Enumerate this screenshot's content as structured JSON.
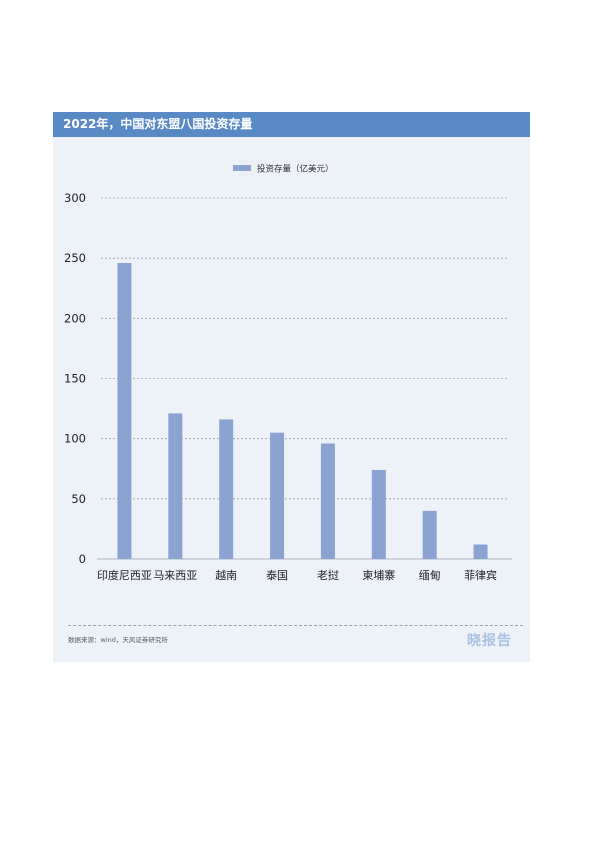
{
  "header": {
    "title": "2022年，中国对东盟八国投资存量"
  },
  "chart_data": {
    "type": "bar",
    "title": "2022年，中国对东盟八国投资存量",
    "categories": [
      "印度尼西亚",
      "马来西亚",
      "越南",
      "泰国",
      "老挝",
      "柬埔寨",
      "缅甸",
      "菲律宾"
    ],
    "series": [
      {
        "name": "投资存量（亿美元）",
        "values": [
          246,
          121,
          116,
          105,
          96,
          74,
          40,
          12
        ],
        "color": "#8ba3d1"
      }
    ],
    "ylim": [
      0,
      300
    ],
    "yticks": [
      0,
      50,
      100,
      150,
      200,
      250,
      300
    ],
    "grid": true,
    "legend": "top-center",
    "xlabel": "",
    "ylabel": ""
  },
  "footer": {
    "source": "数据来源：wind，天风证券研究所",
    "logo": "晓报告"
  }
}
